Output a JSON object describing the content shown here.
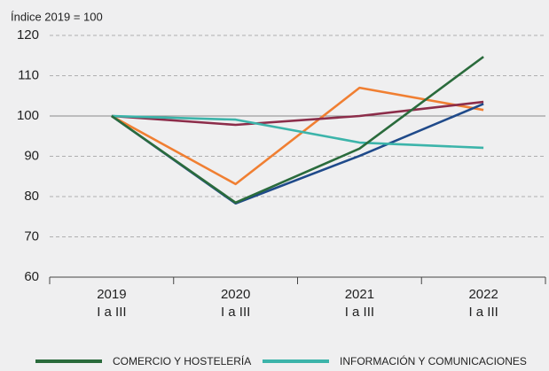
{
  "chart_data": {
    "type": "line",
    "ylabel": "Índice 2019 = 100",
    "categories": [
      "2019\nI a III",
      "2020\nI a III",
      "2021\nI a III",
      "2022\nI a III"
    ],
    "series": [
      {
        "color": "#f07f32",
        "values": [
          100,
          83.1,
          107,
          101.5
        ]
      },
      {
        "color": "#8c2d4a",
        "values": [
          100,
          97.8,
          100,
          103.5
        ]
      },
      {
        "color": "#1f4a8a",
        "values": [
          100,
          78.3,
          90.1,
          103
        ]
      },
      {
        "name": "INFORMACIÓN Y COMUNICACIONES",
        "color": "#3cb4aa",
        "values": [
          100,
          99.1,
          93.4,
          92.1
        ]
      },
      {
        "name": "COMERCIO Y HOSTELERÍA",
        "color": "#2a6b3c",
        "values": [
          100,
          78.5,
          91.9,
          114.7
        ]
      }
    ],
    "ylim": [
      60,
      120
    ],
    "yticks": [
      60,
      70,
      80,
      90,
      100,
      110,
      120
    ],
    "grid": true,
    "baseline": 100,
    "legend": "bottom"
  }
}
